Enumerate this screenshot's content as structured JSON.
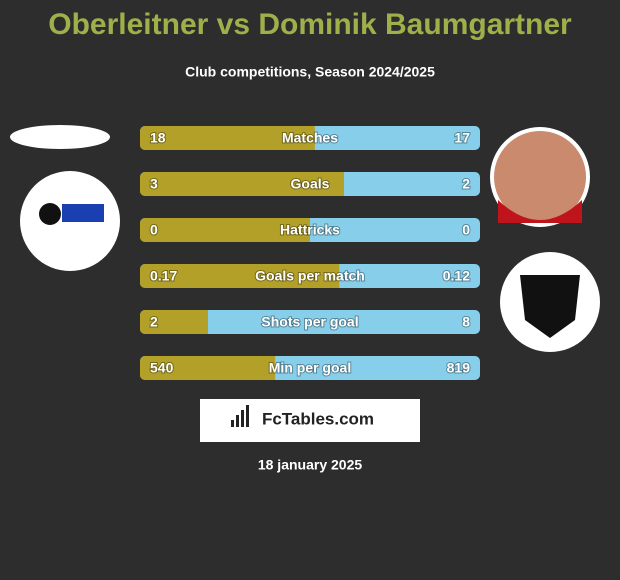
{
  "header": {
    "title": "Oberleitner vs Dominik Baumgartner",
    "subtitle": "Club competitions, Season 2024/2025"
  },
  "rows": [
    {
      "label": "Matches",
      "left": 18,
      "right": 17
    },
    {
      "label": "Goals",
      "left": 3,
      "right": 2
    },
    {
      "label": "Hattricks",
      "left": 0,
      "right": 0
    },
    {
      "label": "Goals per match",
      "left": 0.17,
      "right": 0.12
    },
    {
      "label": "Shots per goal",
      "left": 2,
      "right": 8
    },
    {
      "label": "Min per goal",
      "left": 540,
      "right": 819
    }
  ],
  "brand": "FcTables.com",
  "date": "18 january 2025"
}
